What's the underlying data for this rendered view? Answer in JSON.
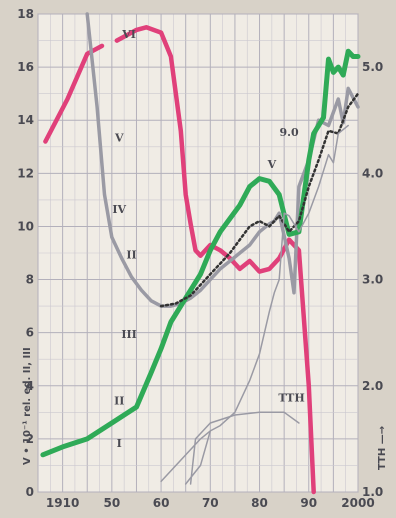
{
  "chart_data": {
    "type": "line",
    "title": "",
    "xlabel": "",
    "left_axis_label": "V • 10⁻¹ rel. ed.  II, III",
    "right_axis_label": "TTH —→",
    "x_range": [
      1935,
      2000
    ],
    "left_ylim": [
      0,
      18
    ],
    "right_ylim": [
      1.0,
      5.5
    ],
    "grid": true,
    "x_ticks": [
      "1910",
      "50",
      "60",
      "70",
      "80",
      "90",
      "2000"
    ],
    "left_ticks": [
      "0",
      "2",
      "4",
      "6",
      "8",
      "10",
      "12",
      "14",
      "16",
      "18"
    ],
    "right_ticks": [
      "1.0",
      "2.0",
      "3.0",
      "4.0",
      "5.0"
    ],
    "annotations": [
      "VI",
      "V",
      "IV",
      "II",
      "III",
      "II",
      "I",
      "V",
      "9.0",
      "TTH"
    ],
    "series": [
      {
        "color": "#e0407a",
        "axis": "left",
        "segments": [
          [
            [
              1936.5,
              13.2
            ],
            [
              1941,
              14.8
            ],
            [
              1945,
              16.5
            ],
            [
              1948,
              16.8
            ]
          ],
          [
            [
              1951,
              17.0
            ],
            [
              1955,
              17.4
            ],
            [
              1957,
              17.5
            ],
            [
              1960,
              17.3
            ],
            [
              1962,
              16.4
            ],
            [
              1964,
              13.6
            ],
            [
              1965,
              11.2
            ],
            [
              1966,
              10.1
            ],
            [
              1967,
              9.1
            ],
            [
              1968,
              8.9
            ],
            [
              1970,
              9.3
            ],
            [
              1972,
              9.1
            ],
            [
              1974,
              8.8
            ],
            [
              1976,
              8.4
            ],
            [
              1978,
              8.7
            ],
            [
              1980,
              8.3
            ],
            [
              1982,
              8.4
            ],
            [
              1984,
              8.8
            ],
            [
              1986,
              9.5
            ],
            [
              1988,
              9.1
            ],
            [
              1990,
              4.0
            ],
            [
              1991,
              0
            ]
          ]
        ]
      },
      {
        "color": "#9a9aa4",
        "axis": "left",
        "points": [
          [
            1945,
            18.0
          ],
          [
            1947,
            14.5
          ],
          [
            1948.5,
            11.2
          ],
          [
            1950,
            9.6
          ],
          [
            1952,
            8.8
          ],
          [
            1954,
            8.1
          ],
          [
            1956,
            7.6
          ],
          [
            1958,
            7.2
          ],
          [
            1960,
            7.0
          ],
          [
            1962,
            7.0
          ],
          [
            1964,
            7.1
          ],
          [
            1966,
            7.3
          ],
          [
            1968,
            7.6
          ],
          [
            1970,
            8.0
          ],
          [
            1972,
            8.4
          ],
          [
            1974,
            8.7
          ],
          [
            1976,
            9.0
          ],
          [
            1978,
            9.3
          ],
          [
            1980,
            9.8
          ],
          [
            1982,
            10.1
          ],
          [
            1983,
            10.2
          ],
          [
            1984,
            10.5
          ],
          [
            1986,
            8.8
          ],
          [
            1987,
            7.5
          ],
          [
            1988,
            11.5
          ],
          [
            1990,
            12.5
          ],
          [
            1992,
            14.0
          ],
          [
            1994,
            13.8
          ],
          [
            1996,
            14.8
          ],
          [
            1997,
            13.9
          ],
          [
            1998,
            15.2
          ],
          [
            2000,
            14.5
          ]
        ]
      },
      {
        "color": "#2faa57",
        "axis": "left",
        "points": [
          [
            1936,
            1.4
          ],
          [
            1940,
            1.7
          ],
          [
            1945,
            2.0
          ],
          [
            1950,
            2.6
          ],
          [
            1955,
            3.2
          ],
          [
            1958,
            4.5
          ],
          [
            1960,
            5.4
          ],
          [
            1962,
            6.4
          ],
          [
            1965,
            7.3
          ],
          [
            1968,
            8.2
          ],
          [
            1970,
            9.1
          ],
          [
            1972,
            9.8
          ],
          [
            1974,
            10.3
          ],
          [
            1976,
            10.8
          ],
          [
            1978,
            11.5
          ],
          [
            1980,
            11.8
          ],
          [
            1982,
            11.7
          ],
          [
            1984,
            11.2
          ],
          [
            1986,
            9.7
          ],
          [
            1988,
            9.8
          ],
          [
            1990,
            12.5
          ],
          [
            1991,
            13.5
          ],
          [
            1993,
            14.1
          ],
          [
            1994,
            16.3
          ],
          [
            1995,
            15.8
          ],
          [
            1996,
            16.0
          ],
          [
            1997,
            15.7
          ],
          [
            1998,
            16.6
          ],
          [
            1999,
            16.4
          ],
          [
            2000,
            16.4
          ]
        ]
      },
      {
        "color": "#333333",
        "axis": "left",
        "points": [
          [
            1960,
            7.0
          ],
          [
            1963,
            7.1
          ],
          [
            1966,
            7.4
          ],
          [
            1968,
            7.8
          ],
          [
            1970,
            8.2
          ],
          [
            1972,
            8.6
          ],
          [
            1974,
            9.0
          ],
          [
            1976,
            9.5
          ],
          [
            1978,
            10.0
          ],
          [
            1980,
            10.2
          ],
          [
            1982,
            10.0
          ],
          [
            1984,
            10.4
          ],
          [
            1986,
            9.8
          ],
          [
            1988,
            10.2
          ],
          [
            1990,
            11.5
          ],
          [
            1992,
            12.5
          ],
          [
            1994,
            13.6
          ],
          [
            1996,
            13.5
          ],
          [
            1998,
            14.5
          ],
          [
            2000,
            15.0
          ]
        ]
      },
      {
        "color": "#9a9aa4",
        "axis": "left",
        "points": [
          [
            1965,
            0.3
          ],
          [
            1968,
            1.0
          ],
          [
            1970,
            2.3
          ],
          [
            1972,
            2.5
          ],
          [
            1975,
            3.0
          ],
          [
            1978,
            4.2
          ],
          [
            1980,
            5.2
          ],
          [
            1982,
            6.8
          ],
          [
            1983,
            7.5
          ],
          [
            1984,
            8.0
          ],
          [
            1985,
            10.5
          ],
          [
            1986,
            10.4
          ],
          [
            1988,
            9.8
          ],
          [
            1990,
            10.5
          ],
          [
            1992,
            11.5
          ],
          [
            1994,
            12.7
          ],
          [
            1995,
            12.4
          ],
          [
            1996,
            13.5
          ],
          [
            1998,
            13.8
          ]
        ]
      },
      {
        "color": "#9a9aa4",
        "axis": "left",
        "points": [
          [
            1966,
            0.3
          ],
          [
            1967,
            2.0
          ],
          [
            1970,
            2.6
          ],
          [
            1975,
            2.9
          ],
          [
            1980,
            3.0
          ],
          [
            1985,
            3.0
          ],
          [
            1988,
            2.6
          ]
        ]
      },
      {
        "color": "#9a9aa4",
        "axis": "left",
        "points": [
          [
            1960,
            0.4
          ],
          [
            1964,
            1.2
          ],
          [
            1968,
            2.0
          ],
          [
            1970,
            2.3
          ]
        ]
      }
    ]
  }
}
